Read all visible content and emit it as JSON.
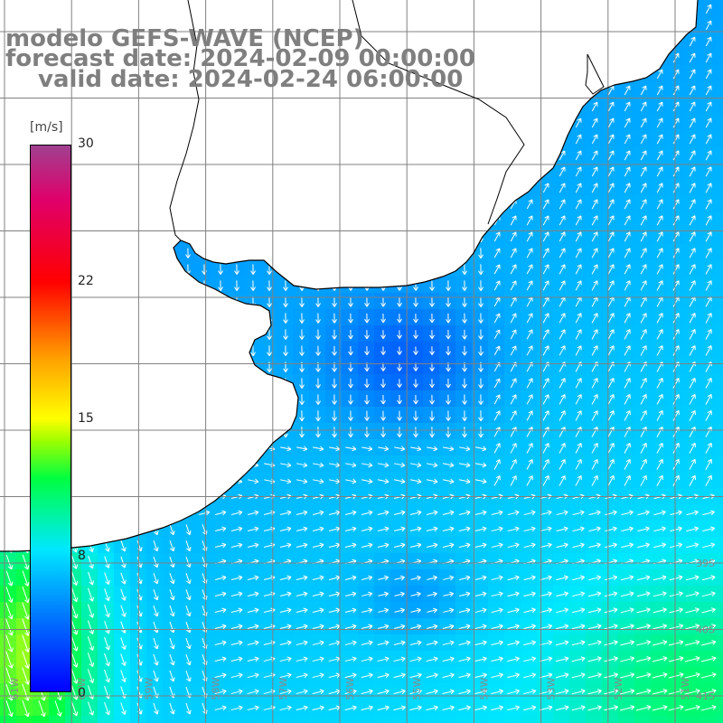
{
  "title": {
    "line1": "modelo GEFS-WAVE (NCEP)",
    "line2": "forecast date: 2024-02-09 00:00:00",
    "line3": "valid date: 2024-02-24 06:00:00"
  },
  "colorbar": {
    "unit": "[m/s]",
    "ticks": [
      "30",
      "22",
      "15",
      "8",
      "0"
    ],
    "range": [
      0,
      30
    ],
    "colors": [
      "#0000ff",
      "#0070ff",
      "#00e8ff",
      "#00ff40",
      "#a0ff00",
      "#ffff00",
      "#ffa000",
      "#ff0000",
      "#e0006a",
      "#a04090"
    ]
  },
  "map": {
    "variable": "wind speed and direction",
    "land_color": "#ffffff",
    "grid_color": "#808080",
    "coast_color": "#000000",
    "lat_labels": [
      "",
      "",
      "",
      "",
      "",
      "",
      "",
      "",
      "39S",
      "40S",
      "41S"
    ],
    "lon_labels": [
      "61W",
      "60W",
      "59W",
      "58W",
      "57W",
      "56W",
      "55W",
      "54W",
      "53W",
      "52W",
      "51W"
    ]
  }
}
